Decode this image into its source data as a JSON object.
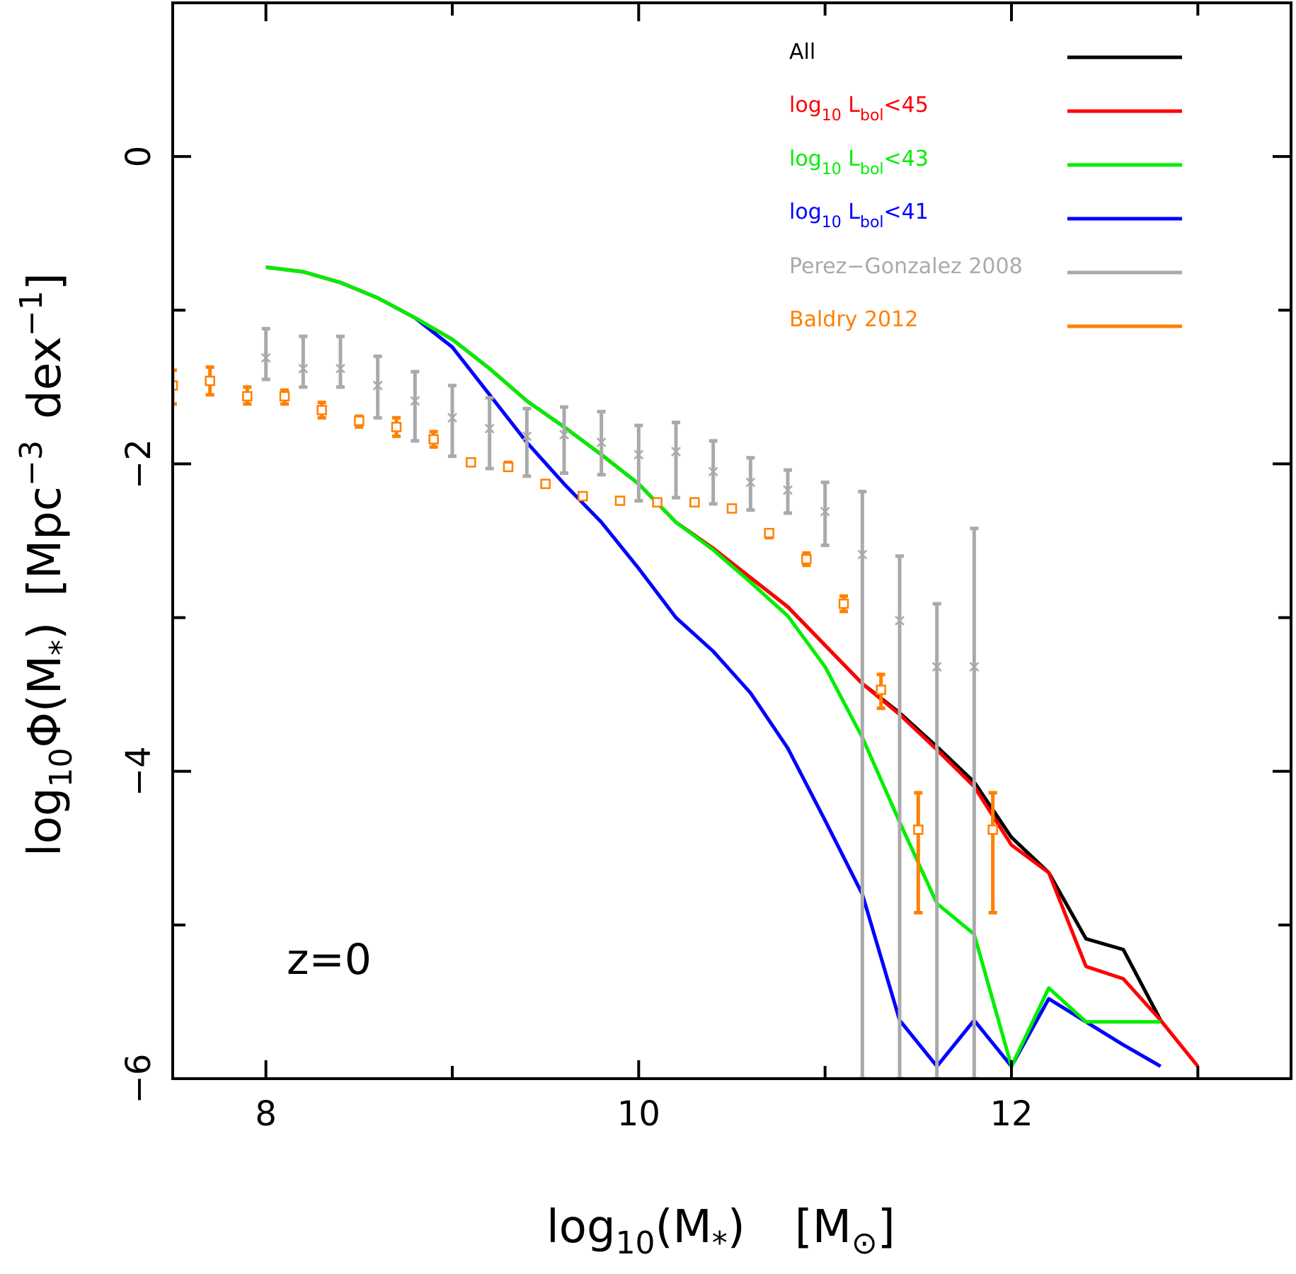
{
  "chart_data": {
    "type": "line",
    "annotation": "z=0",
    "xlabel": {
      "prefix": "log",
      "sub": "10",
      "mid": "(M",
      "star": "*",
      "close": ")",
      "units_open": "[M",
      "sun": "⊙",
      "units_close": "]"
    },
    "ylabel": {
      "prefix": "log",
      "sub": "10",
      "phi": "Φ(M",
      "star": "*",
      "close": ")",
      "units": "[Mpc",
      "exp1": "−3",
      "dex": "dex",
      "exp2": "−1",
      "bracket_close": "]"
    },
    "xlim": [
      7.5,
      13.5
    ],
    "ylim": [
      -6,
      1
    ],
    "xticks": [
      8,
      10,
      12
    ],
    "xtick_labels": [
      "8",
      "10",
      "12"
    ],
    "yticks": [
      -6,
      -4,
      -2,
      0
    ],
    "ytick_labels": [
      "−6",
      "−4",
      "−2",
      "0"
    ],
    "series": [
      {
        "name": "All",
        "legend": {
          "main": "All"
        },
        "color": "#000000",
        "x": [
          8.0,
          8.2,
          8.4,
          8.6,
          8.8,
          9.0,
          9.2,
          9.4,
          9.6,
          9.8,
          10.0,
          10.2,
          10.4,
          10.6,
          10.8,
          11.0,
          11.2,
          11.4,
          11.6,
          11.8,
          12.0,
          12.2,
          12.4,
          12.6,
          12.8
        ],
        "y": [
          -0.72,
          -0.75,
          -0.82,
          -0.92,
          -1.05,
          -1.19,
          -1.38,
          -1.59,
          -1.76,
          -1.94,
          -2.13,
          -2.38,
          -2.55,
          -2.74,
          -2.93,
          -3.18,
          -3.43,
          -3.62,
          -3.84,
          -4.07,
          -4.43,
          -4.66,
          -5.09,
          -5.16,
          -5.62
        ]
      },
      {
        "name": "log10 Lbol<45",
        "legend": {
          "main": "log",
          "sub1": "10",
          "mid": " L",
          "sub2": "bol",
          "tail": "<45"
        },
        "color": "#ff0000",
        "x": [
          8.0,
          8.2,
          8.4,
          8.6,
          8.8,
          9.0,
          9.2,
          9.4,
          9.6,
          9.8,
          10.0,
          10.2,
          10.4,
          10.6,
          10.8,
          11.0,
          11.2,
          11.4,
          11.6,
          11.8,
          12.0,
          12.2,
          12.4,
          12.6,
          12.8,
          13.0
        ],
        "y": [
          -0.72,
          -0.75,
          -0.82,
          -0.92,
          -1.05,
          -1.19,
          -1.38,
          -1.59,
          -1.76,
          -1.94,
          -2.13,
          -2.38,
          -2.55,
          -2.74,
          -2.93,
          -3.18,
          -3.43,
          -3.63,
          -3.86,
          -4.1,
          -4.48,
          -4.66,
          -5.27,
          -5.35,
          -5.62,
          -5.92
        ]
      },
      {
        "name": "log10 Lbol<43",
        "legend": {
          "main": "log",
          "sub1": "10",
          "mid": " L",
          "sub2": "bol",
          "tail": "<43"
        },
        "color": "#00ee00",
        "x": [
          8.0,
          8.2,
          8.4,
          8.6,
          8.8,
          9.0,
          9.2,
          9.4,
          9.6,
          9.8,
          10.0,
          10.2,
          10.4,
          10.6,
          10.8,
          11.0,
          11.2,
          11.4,
          11.6,
          11.8,
          12.0,
          12.2,
          12.4,
          12.6,
          12.8
        ],
        "y": [
          -0.72,
          -0.75,
          -0.82,
          -0.92,
          -1.05,
          -1.19,
          -1.38,
          -1.59,
          -1.76,
          -1.94,
          -2.13,
          -2.38,
          -2.56,
          -2.77,
          -2.99,
          -3.32,
          -3.78,
          -4.33,
          -4.86,
          -5.06,
          -5.92,
          -5.41,
          -5.63,
          -5.63,
          -5.63
        ]
      },
      {
        "name": "log10 Lbol<41",
        "legend": {
          "main": "log",
          "sub1": "10",
          "mid": " L",
          "sub2": "bol",
          "tail": "<41"
        },
        "color": "#0000ff",
        "x": [
          8.0,
          8.2,
          8.4,
          8.6,
          8.8,
          9.0,
          9.2,
          9.4,
          9.6,
          9.8,
          10.0,
          10.2,
          10.4,
          10.6,
          10.8,
          11.0,
          11.2,
          11.4,
          11.6,
          11.8,
          12.0,
          12.2,
          12.4,
          12.6,
          12.8
        ],
        "y": [
          -0.72,
          -0.75,
          -0.82,
          -0.92,
          -1.05,
          -1.24,
          -1.55,
          -1.86,
          -2.13,
          -2.38,
          -2.68,
          -3.0,
          -3.22,
          -3.49,
          -3.85,
          -4.32,
          -4.8,
          -5.62,
          -5.92,
          -5.62,
          -5.92,
          -5.48,
          -5.63,
          -5.78,
          -5.92
        ]
      }
    ],
    "errorbar_series": [
      {
        "name": "Perez-Gonzalez 2008",
        "legend": {
          "main": "Perez−Gonzalez 2008"
        },
        "color": "#aaaaaa",
        "marker": "x",
        "points": [
          {
            "x": 8.0,
            "y": -1.31,
            "lo": -1.45,
            "hi": -1.12
          },
          {
            "x": 8.2,
            "y": -1.38,
            "lo": -1.5,
            "hi": -1.17
          },
          {
            "x": 8.4,
            "y": -1.38,
            "lo": -1.5,
            "hi": -1.17
          },
          {
            "x": 8.6,
            "y": -1.49,
            "lo": -1.7,
            "hi": -1.3
          },
          {
            "x": 8.8,
            "y": -1.59,
            "lo": -1.85,
            "hi": -1.4
          },
          {
            "x": 9.0,
            "y": -1.7,
            "lo": -1.95,
            "hi": -1.49
          },
          {
            "x": 9.2,
            "y": -1.77,
            "lo": -2.03,
            "hi": -1.57
          },
          {
            "x": 9.4,
            "y": -1.82,
            "lo": -2.08,
            "hi": -1.64
          },
          {
            "x": 9.6,
            "y": -1.81,
            "lo": -2.06,
            "hi": -1.63
          },
          {
            "x": 9.8,
            "y": -1.86,
            "lo": -2.07,
            "hi": -1.66
          },
          {
            "x": 10.0,
            "y": -1.94,
            "lo": -2.24,
            "hi": -1.75
          },
          {
            "x": 10.2,
            "y": -1.92,
            "lo": -2.22,
            "hi": -1.73
          },
          {
            "x": 10.4,
            "y": -2.05,
            "lo": -2.26,
            "hi": -1.85
          },
          {
            "x": 10.6,
            "y": -2.12,
            "lo": -2.3,
            "hi": -1.96
          },
          {
            "x": 10.8,
            "y": -2.17,
            "lo": -2.32,
            "hi": -2.04
          },
          {
            "x": 11.0,
            "y": -2.31,
            "lo": -2.53,
            "hi": -2.12
          },
          {
            "x": 11.2,
            "y": -2.59,
            "lo": -6.0,
            "hi": -2.18
          },
          {
            "x": 11.4,
            "y": -3.02,
            "lo": -6.0,
            "hi": -2.6
          },
          {
            "x": 11.6,
            "y": -3.32,
            "lo": -6.0,
            "hi": -2.91
          },
          {
            "x": 11.8,
            "y": -3.32,
            "lo": -6.0,
            "hi": -2.42
          }
        ]
      },
      {
        "name": "Baldry 2012",
        "legend": {
          "main": "Baldry 2012"
        },
        "color": "#ff8000",
        "marker": "square",
        "points": [
          {
            "x": 7.5,
            "y": -1.49,
            "lo": -1.61,
            "hi": -1.39
          },
          {
            "x": 7.7,
            "y": -1.46,
            "lo": -1.55,
            "hi": -1.37
          },
          {
            "x": 7.9,
            "y": -1.56,
            "lo": -1.61,
            "hi": -1.5
          },
          {
            "x": 8.1,
            "y": -1.56,
            "lo": -1.61,
            "hi": -1.52
          },
          {
            "x": 8.3,
            "y": -1.65,
            "lo": -1.7,
            "hi": -1.6
          },
          {
            "x": 8.5,
            "y": -1.72,
            "lo": -1.76,
            "hi": -1.69
          },
          {
            "x": 8.7,
            "y": -1.76,
            "lo": -1.82,
            "hi": -1.7
          },
          {
            "x": 8.9,
            "y": -1.84,
            "lo": -1.89,
            "hi": -1.79
          },
          {
            "x": 9.1,
            "y": -1.99,
            "lo": -2.01,
            "hi": -1.97
          },
          {
            "x": 9.3,
            "y": -2.02,
            "lo": -2.04,
            "hi": -1.99
          },
          {
            "x": 9.5,
            "y": -2.13,
            "lo": -2.15,
            "hi": -2.11
          },
          {
            "x": 9.7,
            "y": -2.21,
            "lo": -2.23,
            "hi": -2.19
          },
          {
            "x": 9.9,
            "y": -2.24,
            "lo": -2.26,
            "hi": -2.22
          },
          {
            "x": 10.1,
            "y": -2.25,
            "lo": -2.27,
            "hi": -2.23
          },
          {
            "x": 10.3,
            "y": -2.25,
            "lo": -2.27,
            "hi": -2.23
          },
          {
            "x": 10.5,
            "y": -2.29,
            "lo": -2.31,
            "hi": -2.27
          },
          {
            "x": 10.7,
            "y": -2.45,
            "lo": -2.48,
            "hi": -2.43
          },
          {
            "x": 10.9,
            "y": -2.62,
            "lo": -2.66,
            "hi": -2.58
          },
          {
            "x": 11.1,
            "y": -2.91,
            "lo": -2.96,
            "hi": -2.86
          },
          {
            "x": 11.3,
            "y": -3.47,
            "lo": -3.59,
            "hi": -3.37
          },
          {
            "x": 11.5,
            "y": -4.38,
            "lo": -4.92,
            "hi": -4.14
          },
          {
            "x": 11.9,
            "y": -4.38,
            "lo": -4.92,
            "hi": -4.14
          }
        ]
      }
    ]
  }
}
